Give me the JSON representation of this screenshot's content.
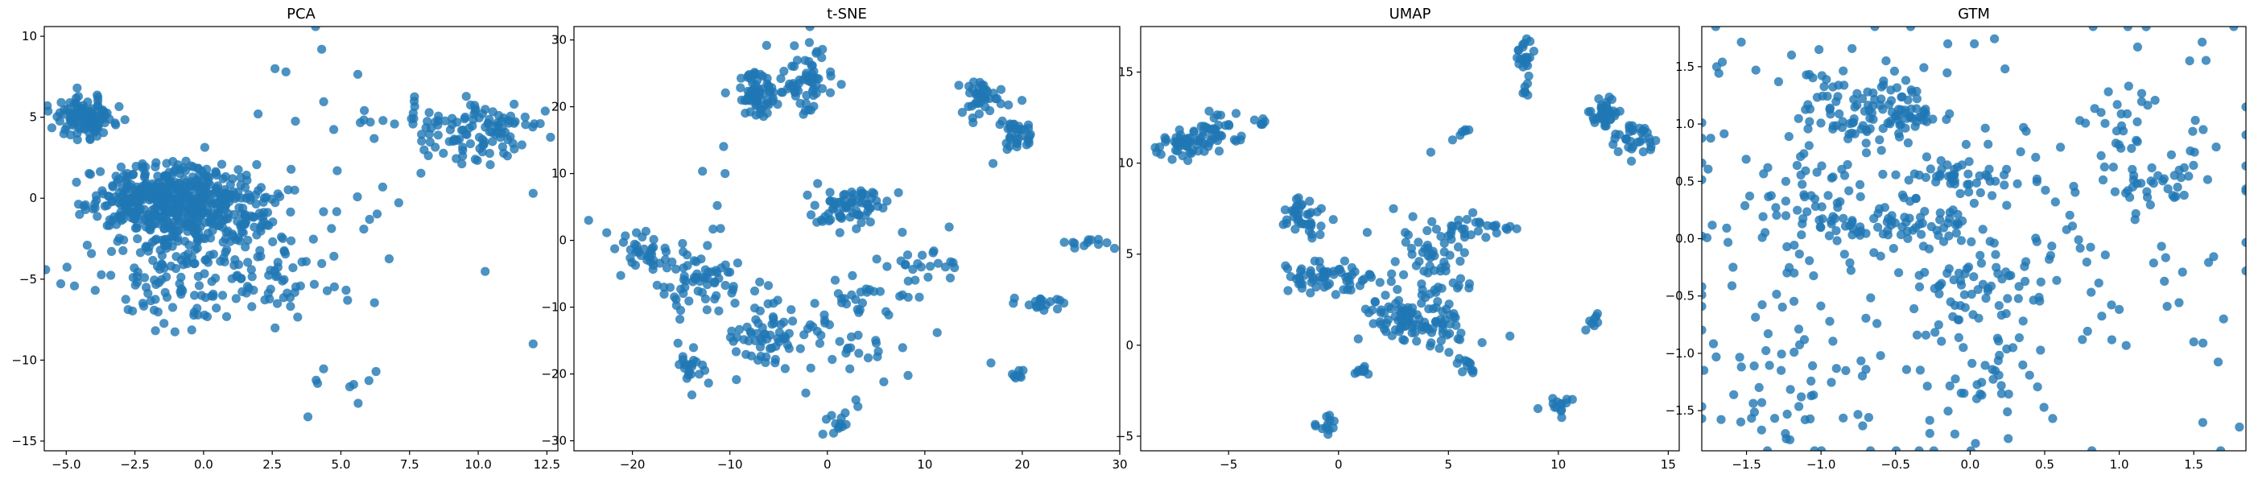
{
  "colors": {
    "point": "#1f77b4"
  },
  "chart_data": [
    {
      "type": "scatter",
      "title": "PCA",
      "xlim": [
        -5.8,
        12.9
      ],
      "ylim": [
        -15.6,
        10.6
      ],
      "xticks": [
        -5.0,
        -2.5,
        0.0,
        2.5,
        5.0,
        7.5,
        10.0,
        12.5
      ],
      "yticks": [
        -15,
        -10,
        -5,
        0,
        5,
        10
      ],
      "xtick_labels": [
        "−5.0",
        "−2.5",
        "0.0",
        "2.5",
        "5.0",
        "7.5",
        "10.0",
        "12.5"
      ],
      "ytick_labels": [
        "−15",
        "−10",
        "−5",
        "0",
        "5",
        "10"
      ],
      "grid": false,
      "clusters": [
        {
          "cx": -4.3,
          "cy": 5.0,
          "sx": 0.55,
          "sy": 0.6,
          "n": 110
        },
        {
          "cx": -2.0,
          "cy": 0.0,
          "sx": 1.1,
          "sy": 1.0,
          "n": 260
        },
        {
          "cx": 0.0,
          "cy": -0.5,
          "sx": 1.3,
          "sy": 1.3,
          "n": 300
        },
        {
          "cx": -1.0,
          "cy": -4.5,
          "sx": 1.6,
          "sy": 1.6,
          "n": 130
        },
        {
          "cx": 2.5,
          "cy": -4.5,
          "sx": 1.3,
          "sy": 1.6,
          "n": 60
        },
        {
          "cx": 9.8,
          "cy": 4.3,
          "sx": 1.2,
          "sy": 1.0,
          "n": 110
        },
        {
          "cx": 6.0,
          "cy": 2.0,
          "sx": 2.0,
          "sy": 3.2,
          "n": 30
        },
        {
          "cx": 5.0,
          "cy": -12.5,
          "sx": 0.9,
          "sy": 1.0,
          "n": 8
        }
      ],
      "extra_points": [
        [
          4.3,
          9.2
        ],
        [
          3.0,
          7.8
        ],
        [
          2.6,
          8.0
        ],
        [
          12.0,
          -9.0
        ],
        [
          12.0,
          0.3
        ],
        [
          3.8,
          -13.5
        ]
      ]
    },
    {
      "type": "scatter",
      "title": "t-SNE",
      "xlim": [
        -26.0,
        30.0
      ],
      "ylim": [
        -31.5,
        32.0
      ],
      "xticks": [
        -20,
        -10,
        0,
        10,
        20,
        30
      ],
      "yticks": [
        -30,
        -20,
        -10,
        0,
        10,
        20,
        30
      ],
      "xtick_labels": [
        "−20",
        "−10",
        "0",
        "10",
        "20",
        "30"
      ],
      "ytick_labels": [
        "−30",
        "−20",
        "−10",
        "0",
        "10",
        "20",
        "30"
      ],
      "grid": false,
      "clusters": [
        {
          "cx": -7.0,
          "cy": 22.0,
          "sx": 1.3,
          "sy": 1.5,
          "n": 70
        },
        {
          "cx": -2.0,
          "cy": 25.0,
          "sx": 1.5,
          "sy": 3.0,
          "n": 60
        },
        {
          "cx": 16.0,
          "cy": 21.0,
          "sx": 1.2,
          "sy": 1.3,
          "n": 40
        },
        {
          "cx": 19.5,
          "cy": 16.0,
          "sx": 1.0,
          "sy": 1.4,
          "n": 35
        },
        {
          "cx": -18.0,
          "cy": -2.0,
          "sx": 2.0,
          "sy": 2.0,
          "n": 40
        },
        {
          "cx": -13.0,
          "cy": -7.0,
          "sx": 2.5,
          "sy": 2.5,
          "n": 55
        },
        {
          "cx": 2.5,
          "cy": 5.0,
          "sx": 2.0,
          "sy": 1.5,
          "n": 70
        },
        {
          "cx": -6.0,
          "cy": -14.0,
          "sx": 2.0,
          "sy": 2.5,
          "n": 60
        },
        {
          "cx": 4.0,
          "cy": -12.0,
          "sx": 3.5,
          "sy": 5.0,
          "n": 60
        },
        {
          "cx": 10.0,
          "cy": -5.0,
          "sx": 2.0,
          "sy": 2.0,
          "n": 20
        },
        {
          "cx": 22.0,
          "cy": -9.5,
          "sx": 1.2,
          "sy": 0.5,
          "n": 18
        },
        {
          "cx": 27.0,
          "cy": -0.5,
          "sx": 1.3,
          "sy": 0.6,
          "n": 12
        },
        {
          "cx": 19.5,
          "cy": -20.5,
          "sx": 0.3,
          "sy": 0.6,
          "n": 8
        },
        {
          "cx": 1.0,
          "cy": -27.5,
          "sx": 0.6,
          "sy": 1.0,
          "n": 12
        },
        {
          "cx": -14.0,
          "cy": -19.0,
          "sx": 1.0,
          "sy": 1.5,
          "n": 20
        },
        {
          "cx": -12.0,
          "cy": -6.0,
          "sx": 2.0,
          "sy": 9.0,
          "n": 15
        }
      ],
      "extra_points": [
        [
          -24.5,
          3.0
        ],
        [
          -10.5,
          10.0
        ],
        [
          12.5,
          2.0
        ],
        [
          17.0,
          11.5
        ],
        [
          -19.0,
          0.5
        ],
        [
          -1.0,
          8.5
        ]
      ]
    },
    {
      "type": "scatter",
      "title": "UMAP",
      "xlim": [
        -9.0,
        15.5
      ],
      "ylim": [
        -5.8,
        17.5
      ],
      "xticks": [
        -5,
        0,
        5,
        10,
        15
      ],
      "yticks": [
        -5,
        0,
        5,
        10,
        15
      ],
      "xtick_labels": [
        "−5",
        "0",
        "5",
        "10",
        "15"
      ],
      "ytick_labels": [
        "−5",
        "0",
        "5",
        "10",
        "15"
      ],
      "grid": false,
      "clusters": [
        {
          "cx": -7.0,
          "cy": 11.0,
          "sx": 0.6,
          "sy": 0.4,
          "n": 50
        },
        {
          "cx": -5.5,
          "cy": 11.8,
          "sx": 0.4,
          "sy": 0.6,
          "n": 30
        },
        {
          "cx": 8.5,
          "cy": 15.8,
          "sx": 0.2,
          "sy": 0.5,
          "n": 20
        },
        {
          "cx": 12.0,
          "cy": 12.7,
          "sx": 0.4,
          "sy": 0.4,
          "n": 35
        },
        {
          "cx": 13.5,
          "cy": 11.5,
          "sx": 0.4,
          "sy": 0.5,
          "n": 35
        },
        {
          "cx": -1.5,
          "cy": 7.0,
          "sx": 0.5,
          "sy": 0.6,
          "n": 40
        },
        {
          "cx": -0.5,
          "cy": 3.8,
          "sx": 1.0,
          "sy": 0.5,
          "n": 60
        },
        {
          "cx": 4.0,
          "cy": 4.0,
          "sx": 1.0,
          "sy": 1.5,
          "n": 70
        },
        {
          "cx": 6.0,
          "cy": 6.3,
          "sx": 1.2,
          "sy": 0.3,
          "n": 30
        },
        {
          "cx": 3.0,
          "cy": 1.5,
          "sx": 1.2,
          "sy": 0.6,
          "n": 60
        },
        {
          "cx": 4.5,
          "cy": 1.0,
          "sx": 0.8,
          "sy": 0.8,
          "n": 30
        },
        {
          "cx": 1.0,
          "cy": -1.3,
          "sx": 0.2,
          "sy": 0.2,
          "n": 10
        },
        {
          "cx": 6.0,
          "cy": -1.0,
          "sx": 0.3,
          "sy": 0.4,
          "n": 10
        },
        {
          "cx": -3.5,
          "cy": 12.2,
          "sx": 0.2,
          "sy": 0.2,
          "n": 6
        },
        {
          "cx": -0.5,
          "cy": -4.5,
          "sx": 0.3,
          "sy": 0.3,
          "n": 12
        },
        {
          "cx": 10.0,
          "cy": -3.3,
          "sx": 0.4,
          "sy": 0.4,
          "n": 14
        },
        {
          "cx": 11.5,
          "cy": 1.3,
          "sx": 0.2,
          "sy": 0.2,
          "n": 8
        },
        {
          "cx": 8.5,
          "cy": 14.0,
          "sx": 0.15,
          "sy": 0.2,
          "n": 6
        },
        {
          "cx": 5.5,
          "cy": 11.8,
          "sx": 0.15,
          "sy": 0.2,
          "n": 6
        }
      ],
      "extra_points": [
        [
          4.2,
          10.6
        ],
        [
          7.8,
          0.5
        ],
        [
          -2.3,
          3.0
        ],
        [
          2.5,
          7.5
        ]
      ]
    },
    {
      "type": "scatter",
      "title": "GTM",
      "xlim": [
        -1.8,
        1.85
      ],
      "ylim": [
        -1.85,
        1.85
      ],
      "xticks": [
        -1.5,
        -1.0,
        -0.5,
        0.0,
        0.5,
        1.0,
        1.5
      ],
      "yticks": [
        -1.5,
        -1.0,
        -0.5,
        0.0,
        0.5,
        1.0,
        1.5
      ],
      "xtick_labels": [
        "−1.5",
        "−1.0",
        "−0.5",
        "0.0",
        "0.5",
        "1.0",
        "1.5"
      ],
      "ytick_labels": [
        "−1.5",
        "−1.0",
        "−0.5",
        "0.0",
        "0.5",
        "1.0",
        "1.5"
      ],
      "grid": false,
      "clusters": [
        {
          "cx": -0.5,
          "cy": 1.15,
          "sx": 0.15,
          "sy": 0.15,
          "n": 70
        },
        {
          "cx": -0.9,
          "cy": 1.2,
          "sx": 0.15,
          "sy": 0.2,
          "n": 40
        },
        {
          "cx": -0.5,
          "cy": 0.1,
          "sx": 0.3,
          "sy": 0.08,
          "n": 60
        },
        {
          "cx": -0.1,
          "cy": 0.55,
          "sx": 0.15,
          "sy": 0.1,
          "n": 40
        },
        {
          "cx": 1.25,
          "cy": 0.5,
          "sx": 0.15,
          "sy": 0.08,
          "n": 30
        },
        {
          "cx": 0.0,
          "cy": -0.4,
          "sx": 0.15,
          "sy": 0.1,
          "n": 30
        },
        {
          "cx": -1.1,
          "cy": 0.35,
          "sx": 0.2,
          "sy": 0.25,
          "n": 40
        },
        {
          "cx": 0.0,
          "cy": 0.0,
          "sx": 1.0,
          "sy": 1.0,
          "n": 260
        },
        {
          "cx": -1.3,
          "cy": -1.3,
          "sx": 0.25,
          "sy": 0.3,
          "n": 40
        },
        {
          "cx": 0.2,
          "cy": -1.1,
          "sx": 0.2,
          "sy": 0.3,
          "n": 30
        },
        {
          "cx": 1.0,
          "cy": 1.0,
          "sx": 0.15,
          "sy": 0.2,
          "n": 20
        }
      ],
      "extra_points": [
        [
          1.7,
          -0.7
        ],
        [
          1.65,
          0.8
        ],
        [
          1.5,
          -0.9
        ],
        [
          -0.15,
          1.7
        ],
        [
          -1.7,
          1.5
        ]
      ]
    }
  ]
}
